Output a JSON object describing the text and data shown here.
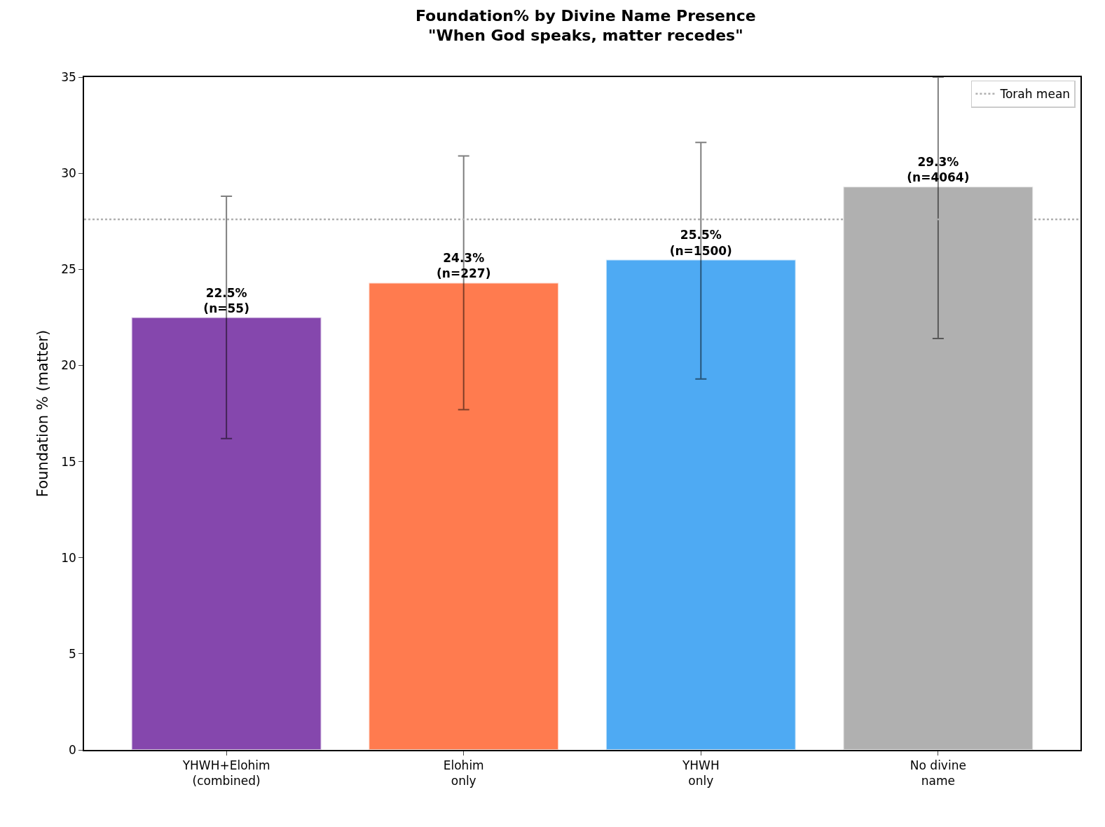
{
  "chart_data": {
    "type": "bar",
    "title": "Foundation% by Divine Name Presence\n\"When God speaks, matter recedes\"",
    "ylabel": "Foundation % (matter)",
    "categories": [
      "YHWH+Elohim\n(combined)",
      "Elohim\nonly",
      "YHWH\nonly",
      "No divine\nname"
    ],
    "values": [
      22.5,
      24.3,
      25.5,
      29.3
    ],
    "colors": [
      "#8547ad",
      "#ff7b4f",
      "#4eaaf3",
      "#b0b0b0"
    ],
    "errors": [
      [
        16.2,
        28.8
      ],
      [
        17.7,
        30.9
      ],
      [
        19.3,
        31.6
      ],
      [
        21.4,
        35
      ]
    ],
    "value_labels": [
      "22.5%\n(n=55)",
      "24.3%\n(n=227)",
      "25.5%\n(n=1500)",
      "29.3%\n(n=4064)"
    ],
    "ref_lines": [
      {
        "axis": "y",
        "value": 27.6,
        "label": "Torah mean",
        "color": "#b0b0b0",
        "line_style": "dotted"
      }
    ],
    "ylim": [
      0,
      35
    ],
    "yticks": [
      0,
      5,
      10,
      15,
      20,
      25,
      30,
      35
    ],
    "grid": false,
    "legend": "top right"
  }
}
